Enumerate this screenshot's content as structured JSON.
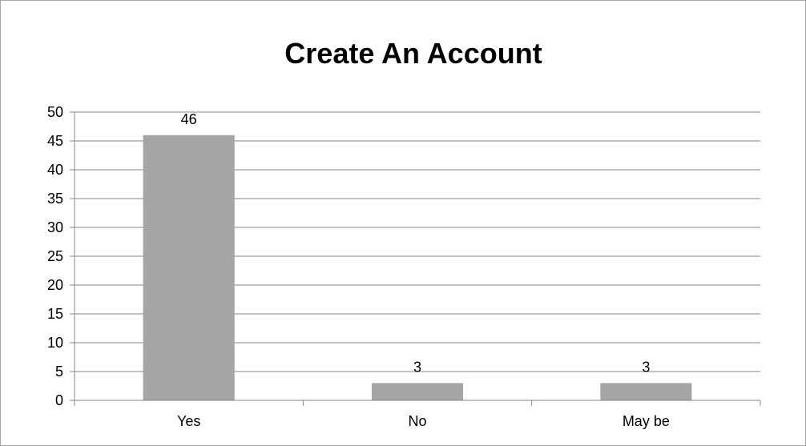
{
  "chart_data": {
    "type": "bar",
    "title": "Create An Account",
    "categories": [
      "Yes",
      "No",
      "May be"
    ],
    "series": [
      {
        "values": [
          46,
          3,
          3
        ],
        "data_labels": [
          "46",
          "3",
          "3"
        ]
      }
    ],
    "xlabel": "",
    "ylabel": "",
    "ylim": [
      0,
      50
    ],
    "y_ticks": [
      0,
      5,
      10,
      15,
      20,
      25,
      30,
      35,
      40,
      45,
      50
    ],
    "y_tick_labels": [
      "0",
      "5",
      "10",
      "15",
      "20",
      "25",
      "30",
      "35",
      "40",
      "45",
      "50"
    ],
    "grid": true,
    "legend": "none",
    "bar_color": "#a5a5a5",
    "grid_color": "#868686"
  }
}
